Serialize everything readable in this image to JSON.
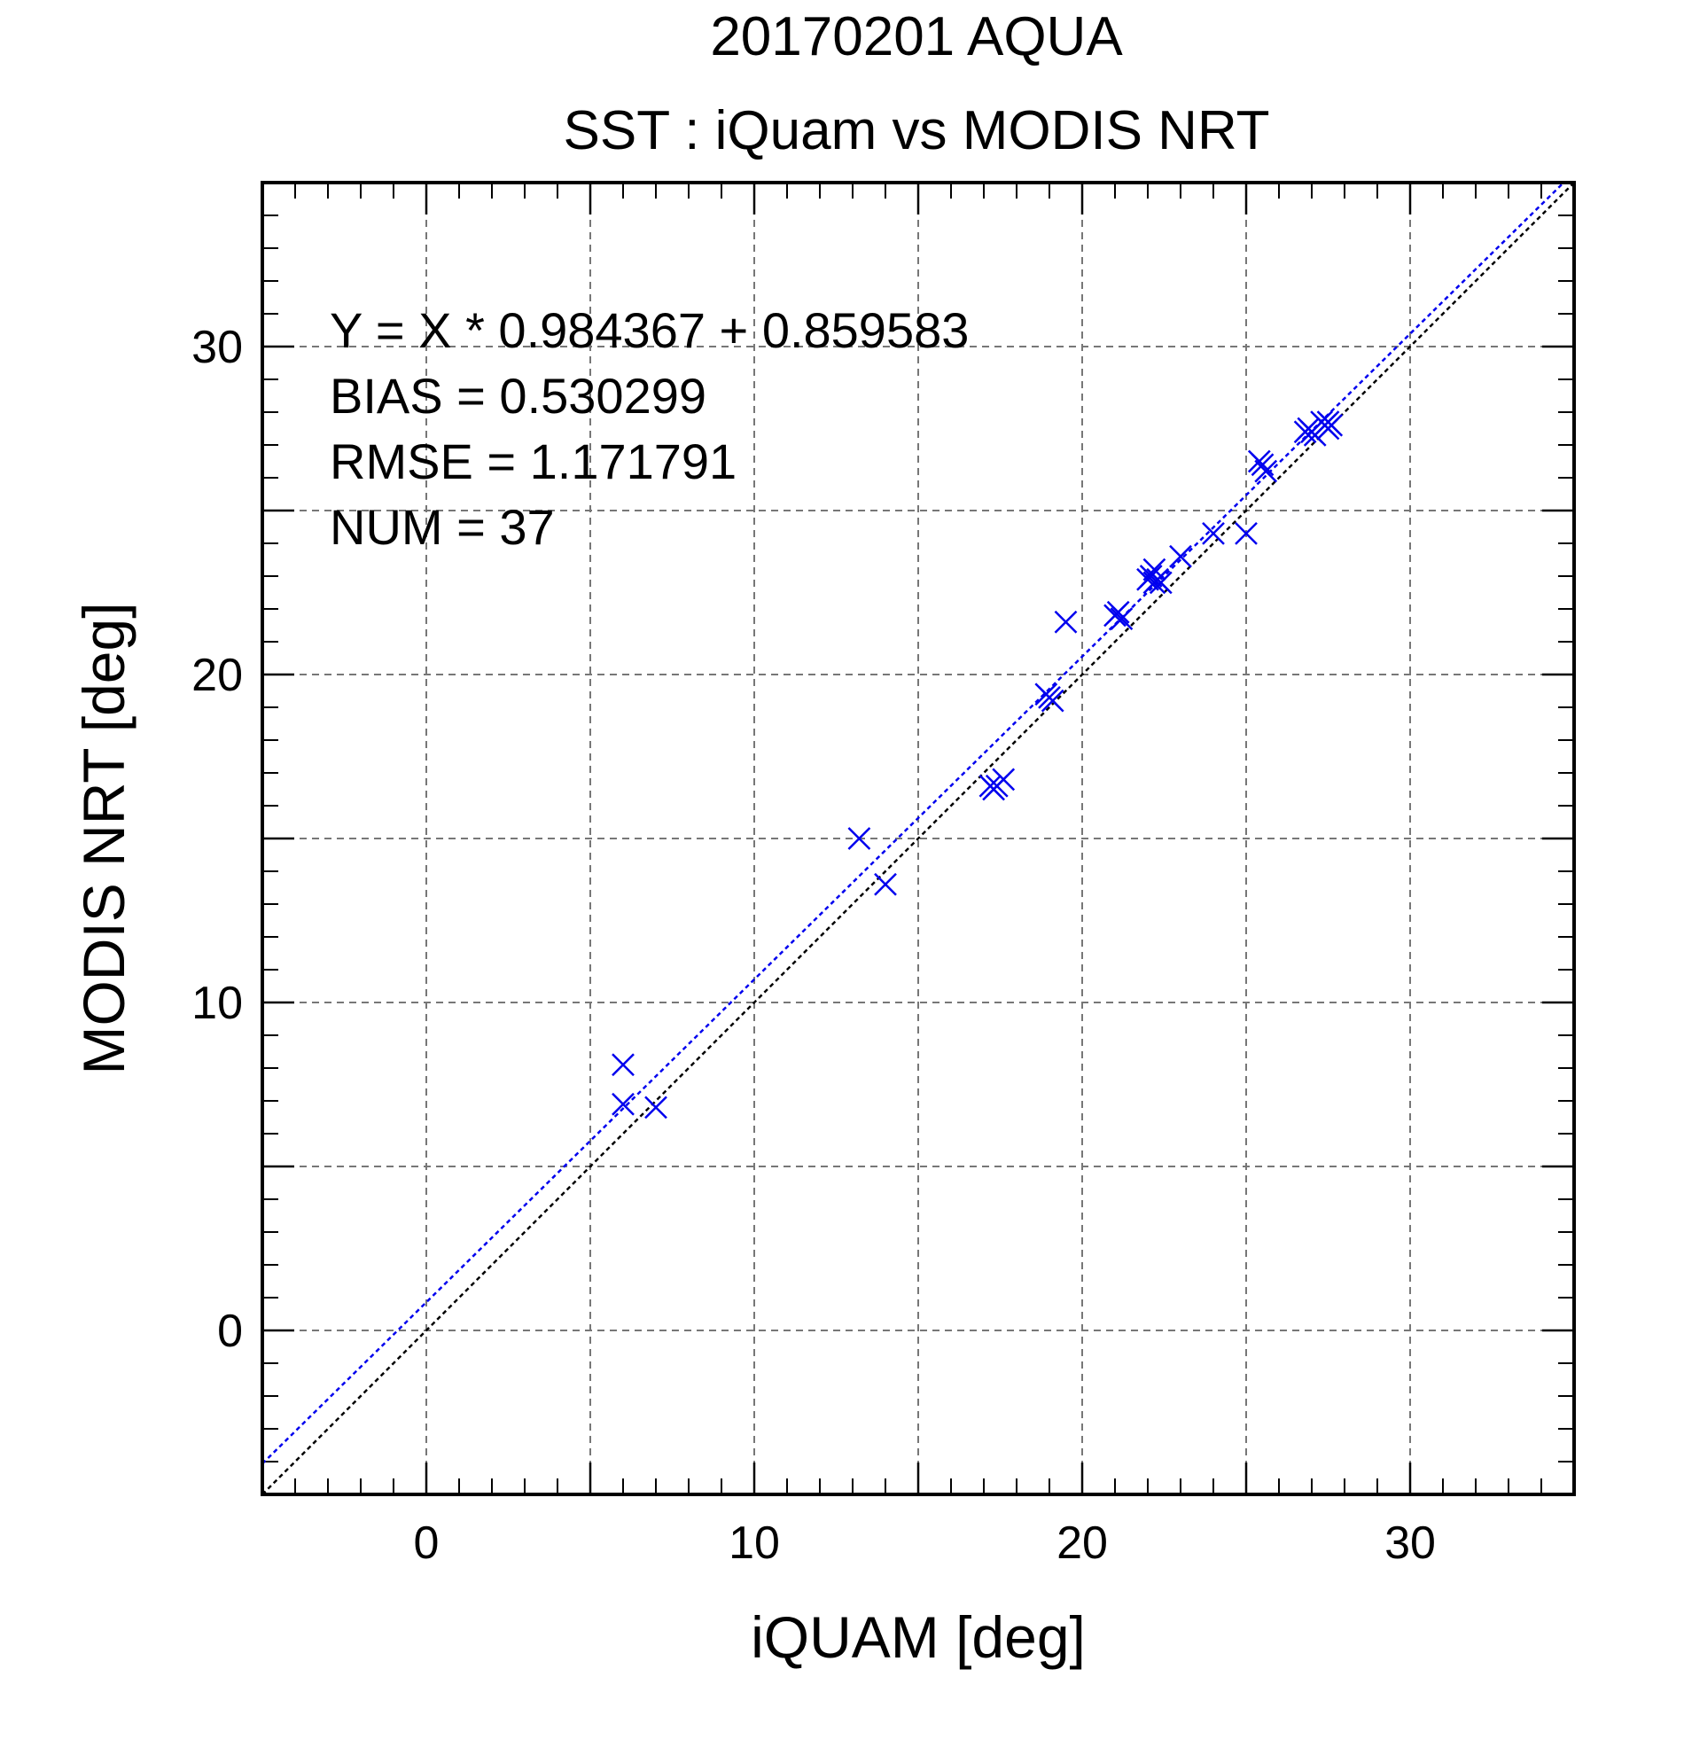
{
  "chart_data": {
    "type": "scatter",
    "title": "20170201 AQUA",
    "subtitle": "SST : iQuam vs MODIS NRT",
    "xlabel": "iQUAM [deg]",
    "ylabel": "MODIS NRT [deg]",
    "xlim": [
      -5,
      35
    ],
    "ylim": [
      -5,
      35
    ],
    "xticks": [
      0,
      10,
      20,
      30
    ],
    "yticks": [
      0,
      10,
      20,
      30
    ],
    "grid": true,
    "marker": "x",
    "point_color": "#0000ee",
    "fit_line_color": "#0000ee",
    "identity_line_color": "#000000",
    "regression": {
      "slope": 0.984367,
      "intercept": 0.859583
    },
    "stats": [
      "Y = X * 0.984367 + 0.859583",
      "BIAS = 0.530299",
      "RMSE = 1.171791",
      "NUM = 37"
    ],
    "points": [
      [
        6.0,
        8.1
      ],
      [
        6.0,
        6.9
      ],
      [
        7.0,
        6.8
      ],
      [
        13.2,
        15.0
      ],
      [
        14.0,
        13.6
      ],
      [
        17.2,
        16.6
      ],
      [
        17.3,
        16.5
      ],
      [
        17.4,
        16.6
      ],
      [
        17.6,
        16.8
      ],
      [
        18.9,
        19.4
      ],
      [
        19.0,
        19.3
      ],
      [
        19.1,
        19.2
      ],
      [
        19.5,
        21.6
      ],
      [
        21.0,
        21.8
      ],
      [
        21.1,
        21.9
      ],
      [
        21.2,
        21.7
      ],
      [
        22.0,
        22.9
      ],
      [
        22.1,
        23.0
      ],
      [
        22.2,
        22.8
      ],
      [
        22.2,
        23.2
      ],
      [
        22.3,
        22.9
      ],
      [
        22.4,
        22.8
      ],
      [
        23.0,
        23.6
      ],
      [
        24.0,
        24.3
      ],
      [
        25.0,
        24.3
      ],
      [
        25.4,
        26.5
      ],
      [
        25.5,
        26.4
      ],
      [
        25.6,
        26.2
      ],
      [
        26.8,
        27.4
      ],
      [
        26.9,
        27.5
      ],
      [
        27.0,
        27.4
      ],
      [
        27.1,
        27.3
      ],
      [
        27.3,
        27.7
      ],
      [
        27.4,
        27.6
      ],
      [
        27.5,
        27.7
      ],
      [
        27.5,
        27.5
      ],
      [
        27.6,
        27.6
      ]
    ]
  }
}
